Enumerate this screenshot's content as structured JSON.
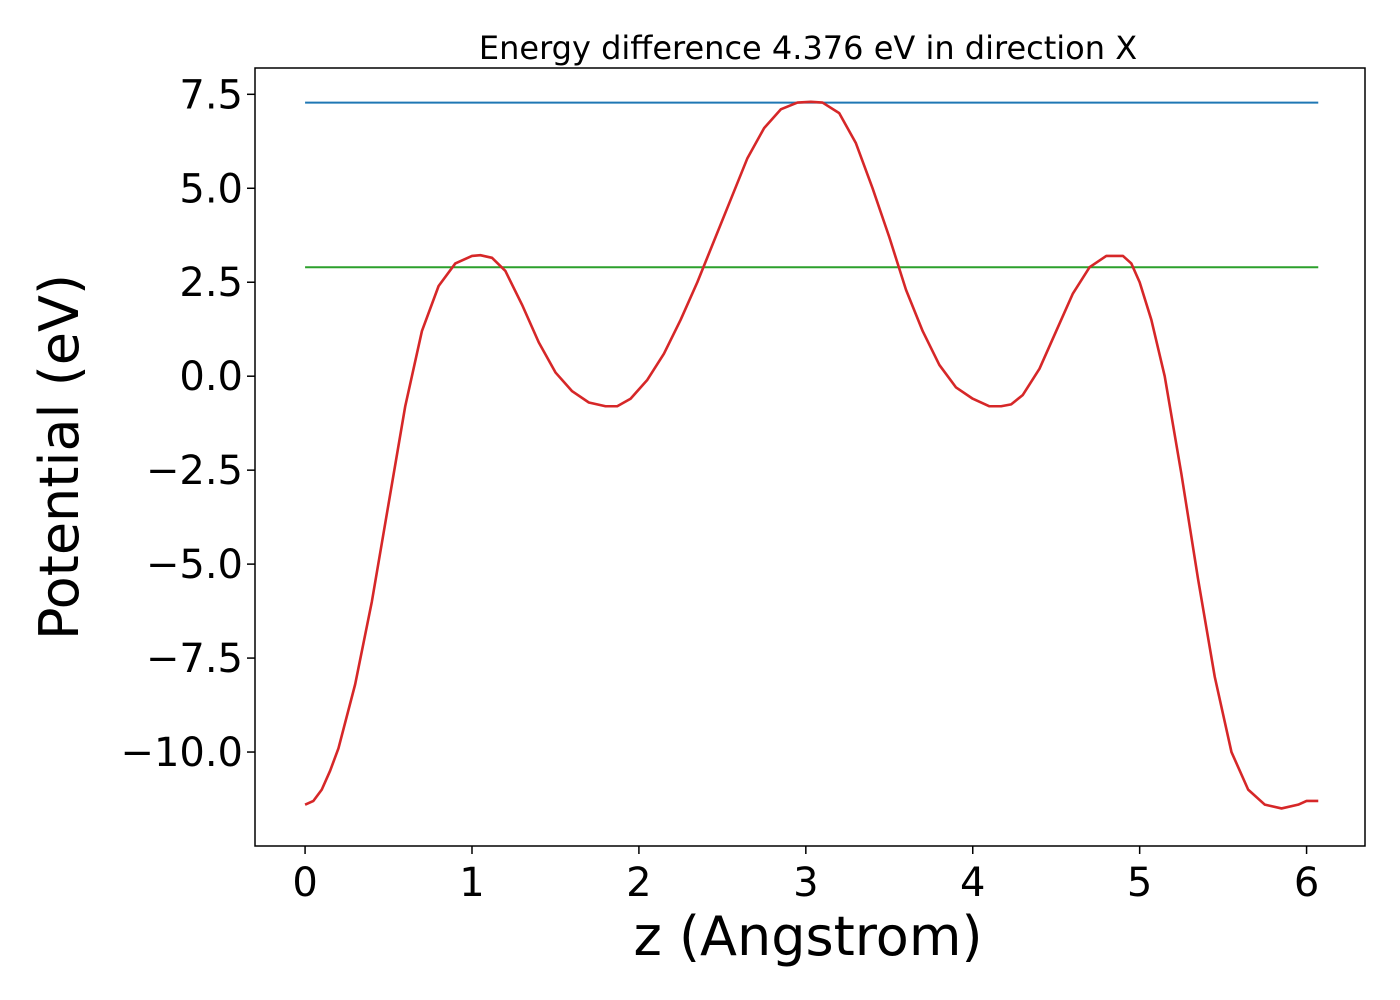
{
  "chart_data": {
    "type": "line",
    "title": "Energy difference 4.376 eV in direction X",
    "xlabel": "z (Angstrom)",
    "ylabel": "Potential (eV)",
    "xlim": [
      -0.3,
      6.35
    ],
    "ylim": [
      -12.5,
      8.2
    ],
    "xticks": [
      0,
      1,
      2,
      3,
      4,
      5,
      6
    ],
    "xtick_labels": [
      "0",
      "1",
      "2",
      "3",
      "4",
      "5",
      "6"
    ],
    "yticks": [
      -10.0,
      -7.5,
      -5.0,
      -2.5,
      0.0,
      2.5,
      5.0,
      7.5
    ],
    "ytick_labels": [
      "−10.0",
      "−7.5",
      "−5.0",
      "−2.5",
      "0.0",
      "2.5",
      "5.0",
      "7.5"
    ],
    "grid": false,
    "series": [
      {
        "color": "#1f77b4",
        "x": [
          0.0,
          6.07
        ],
        "y": [
          7.28,
          7.28
        ]
      },
      {
        "color": "#2ca02c",
        "x": [
          0.0,
          6.07
        ],
        "y": [
          2.9,
          2.9
        ]
      },
      {
        "color": "#d62728",
        "x": [
          0.0,
          0.05,
          0.1,
          0.15,
          0.2,
          0.3,
          0.4,
          0.5,
          0.6,
          0.7,
          0.8,
          0.9,
          1.0,
          1.05,
          1.12,
          1.2,
          1.3,
          1.4,
          1.5,
          1.6,
          1.7,
          1.8,
          1.87,
          1.95,
          2.05,
          2.15,
          2.25,
          2.35,
          2.45,
          2.55,
          2.65,
          2.75,
          2.85,
          2.95,
          3.03,
          3.1,
          3.2,
          3.3,
          3.4,
          3.5,
          3.6,
          3.7,
          3.8,
          3.9,
          4.0,
          4.1,
          4.17,
          4.23,
          4.3,
          4.4,
          4.5,
          4.6,
          4.7,
          4.8,
          4.9,
          4.95,
          5.0,
          5.07,
          5.15,
          5.25,
          5.35,
          5.45,
          5.55,
          5.65,
          5.75,
          5.85,
          5.95,
          6.0,
          6.07
        ],
        "y": [
          -11.4,
          -11.3,
          -11.0,
          -10.5,
          -9.9,
          -8.2,
          -6.0,
          -3.4,
          -0.8,
          1.2,
          2.4,
          3.0,
          3.2,
          3.22,
          3.15,
          2.8,
          1.9,
          0.9,
          0.1,
          -0.4,
          -0.7,
          -0.8,
          -0.8,
          -0.6,
          -0.1,
          0.6,
          1.5,
          2.5,
          3.6,
          4.7,
          5.8,
          6.6,
          7.1,
          7.28,
          7.3,
          7.28,
          7.0,
          6.2,
          5.0,
          3.7,
          2.3,
          1.2,
          0.3,
          -0.3,
          -0.6,
          -0.8,
          -0.8,
          -0.75,
          -0.5,
          0.2,
          1.2,
          2.2,
          2.9,
          3.2,
          3.2,
          3.0,
          2.5,
          1.5,
          0.0,
          -2.6,
          -5.4,
          -8.0,
          -10.0,
          -11.0,
          -11.4,
          -11.5,
          -11.4,
          -11.3,
          -11.3
        ]
      }
    ]
  }
}
